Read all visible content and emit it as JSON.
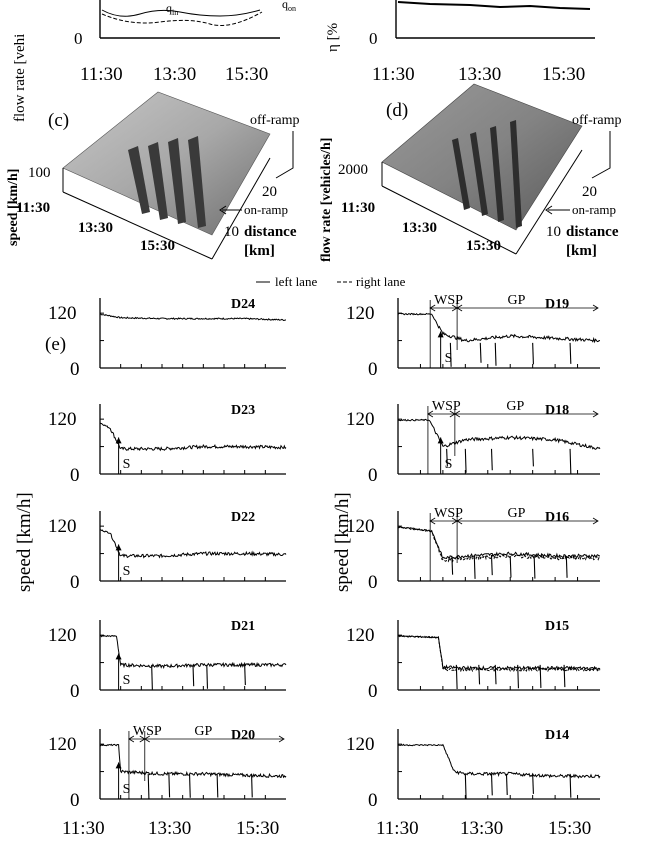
{
  "top": {
    "left_ylabel": "flow rate [vehi",
    "right_ylabel": "η [%",
    "zero": "0",
    "xticks": [
      "11:30",
      "13:30",
      "15:30"
    ],
    "legend_in": "q",
    "legend_in_sub": "in",
    "legend_on": "q",
    "legend_on_sub": "on"
  },
  "panel_c": {
    "tag": "(c)",
    "zlabel": "speed [km/h]",
    "ztick": "100",
    "time_ticks": [
      "11:30",
      "13:30",
      "15:30"
    ],
    "dist_ticks": [
      "20",
      "10"
    ],
    "dist_label": "distance",
    "dist_unit": "[km]",
    "off_ramp": "off-ramp",
    "on_ramp": "on-ramp"
  },
  "panel_d": {
    "tag": "(d)",
    "zlabel": "flow rate [vehicles/h]",
    "ztick": "2000",
    "time_ticks": [
      "11:30",
      "13:30",
      "15:30"
    ],
    "dist_ticks": [
      "20",
      "10"
    ],
    "dist_label": "distance",
    "dist_unit": "[km]",
    "off_ramp": "off-ramp",
    "on_ramp": "on-ramp"
  },
  "legend_e": {
    "left": "left lane",
    "right": "right lane"
  },
  "panel_e": {
    "tag": "(e)",
    "ylabel": "speed [km/h]",
    "xticks": [
      "11:30",
      "13:30",
      "15:30"
    ],
    "ytick_top": "120",
    "ytick_zero": "0",
    "wsp": "WSP",
    "gp": "GP",
    "s": "S"
  },
  "chart_data": [
    {
      "type": "line",
      "title": "D24",
      "xlim": [
        "11:30",
        "16:00"
      ],
      "ylim": [
        0,
        140
      ],
      "ylabel": "speed [km/h]",
      "series": [
        {
          "name": "left lane",
          "x": [
            "11:30",
            "12:00",
            "13:00",
            "14:00",
            "15:00",
            "16:00"
          ],
          "values": [
            118,
            110,
            108,
            108,
            108,
            105
          ]
        }
      ]
    },
    {
      "type": "line",
      "title": "D23",
      "xlim": [
        "11:30",
        "16:00"
      ],
      "ylim": [
        0,
        140
      ],
      "annotations": [
        "S"
      ],
      "series": [
        {
          "name": "left lane",
          "x": [
            "11:30",
            "11:45",
            "12:00",
            "13:00",
            "14:00",
            "15:00",
            "16:00"
          ],
          "values": [
            112,
            100,
            55,
            55,
            60,
            60,
            58
          ]
        }
      ]
    },
    {
      "type": "line",
      "title": "D22",
      "xlim": [
        "11:30",
        "16:00"
      ],
      "ylim": [
        0,
        140
      ],
      "annotations": [
        "S"
      ],
      "series": [
        {
          "name": "left lane",
          "x": [
            "11:30",
            "11:45",
            "12:00",
            "13:00",
            "14:00",
            "15:00",
            "16:00"
          ],
          "values": [
            112,
            105,
            55,
            55,
            60,
            60,
            58
          ]
        }
      ]
    },
    {
      "type": "line",
      "title": "D21",
      "xlim": [
        "11:30",
        "16:00"
      ],
      "ylim": [
        0,
        140
      ],
      "annotations": [
        "S"
      ],
      "series": [
        {
          "name": "left lane",
          "x": [
            "11:30",
            "11:54",
            "12:00",
            "13:00",
            "14:00",
            "15:00",
            "16:00"
          ],
          "values": [
            118,
            118,
            55,
            52,
            55,
            55,
            55
          ]
        }
      ]
    },
    {
      "type": "line",
      "title": "D20",
      "xlim": [
        "11:30",
        "16:00"
      ],
      "ylim": [
        0,
        140
      ],
      "annotations": [
        "WSP",
        "GP",
        "S"
      ],
      "series": [
        {
          "name": "left lane",
          "x": [
            "11:30",
            "11:57",
            "12:00",
            "13:00",
            "14:00",
            "15:00",
            "16:00"
          ],
          "values": [
            118,
            118,
            60,
            55,
            55,
            52,
            50
          ]
        }
      ]
    },
    {
      "type": "line",
      "title": "D19",
      "xlim": [
        "11:30",
        "16:00"
      ],
      "ylim": [
        0,
        140
      ],
      "annotations": [
        "WSP",
        "GP",
        "S"
      ],
      "series": [
        {
          "name": "left lane",
          "x": [
            "11:30",
            "12:15",
            "12:30",
            "13:00",
            "14:00",
            "15:00",
            "16:00"
          ],
          "values": [
            118,
            118,
            75,
            60,
            70,
            65,
            60
          ]
        }
      ]
    },
    {
      "type": "line",
      "title": "D18",
      "xlim": [
        "11:30",
        "16:00"
      ],
      "ylim": [
        0,
        140
      ],
      "annotations": [
        "WSP",
        "GP",
        "S"
      ],
      "series": [
        {
          "name": "left lane",
          "x": [
            "11:30",
            "12:12",
            "12:30",
            "13:00",
            "14:00",
            "15:00",
            "16:00"
          ],
          "values": [
            118,
            118,
            60,
            75,
            80,
            75,
            55
          ]
        }
      ]
    },
    {
      "type": "line",
      "title": "D16",
      "xlim": [
        "11:30",
        "16:00"
      ],
      "ylim": [
        0,
        140
      ],
      "annotations": [
        "WSP",
        "GP"
      ],
      "series": [
        {
          "name": "left lane",
          "x": [
            "11:30",
            "12:15",
            "12:30",
            "13:00",
            "14:00",
            "15:00",
            "16:00"
          ],
          "values": [
            118,
            110,
            50,
            55,
            60,
            55,
            55
          ]
        },
        {
          "name": "right lane",
          "x": [
            "11:30",
            "12:15",
            "12:30",
            "13:00",
            "14:00",
            "15:00",
            "16:00"
          ],
          "values": [
            118,
            108,
            45,
            50,
            55,
            50,
            50
          ]
        }
      ]
    },
    {
      "type": "line",
      "title": "D15",
      "xlim": [
        "11:30",
        "16:00"
      ],
      "ylim": [
        0,
        140
      ],
      "series": [
        {
          "name": "left lane",
          "x": [
            "11:30",
            "12:24",
            "12:30",
            "13:00",
            "14:00",
            "15:00",
            "16:00"
          ],
          "values": [
            118,
            115,
            50,
            48,
            48,
            48,
            48
          ]
        },
        {
          "name": "right lane",
          "x": [
            "11:30",
            "12:24",
            "12:30",
            "13:00",
            "14:00",
            "15:00",
            "16:00"
          ],
          "values": [
            118,
            115,
            45,
            45,
            45,
            45,
            45
          ]
        }
      ]
    },
    {
      "type": "line",
      "title": "D14",
      "xlim": [
        "11:30",
        "16:00"
      ],
      "ylim": [
        0,
        140
      ],
      "series": [
        {
          "name": "left lane",
          "x": [
            "11:30",
            "12:30",
            "12:45",
            "13:00",
            "14:00",
            "15:00",
            "16:00"
          ],
          "values": [
            118,
            118,
            60,
            55,
            55,
            50,
            50
          ]
        }
      ]
    }
  ]
}
